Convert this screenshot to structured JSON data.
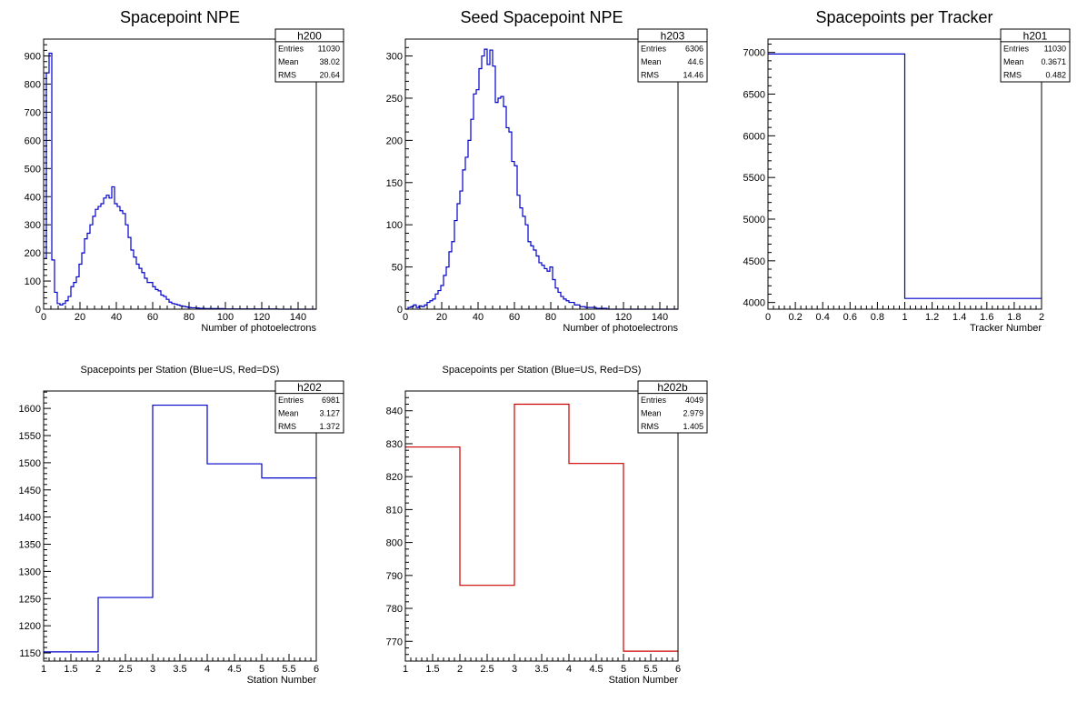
{
  "colors": {
    "blue": "#0000cc",
    "red": "#cc0000",
    "frame": "#000000"
  },
  "chart_data": [
    {
      "id": "h200",
      "type": "histogram",
      "title": "Spacepoint NPE",
      "title_size": "big",
      "xlabel": "Number of photoelectrons",
      "xlim": [
        0,
        150
      ],
      "ylim": [
        0,
        960
      ],
      "xticks": [
        0,
        20,
        40,
        60,
        80,
        100,
        120,
        140
      ],
      "xtick_labels": [
        "0",
        "20",
        "40",
        "60",
        "80",
        "100",
        "120",
        "140"
      ],
      "yticks": [
        0,
        100,
        200,
        300,
        400,
        500,
        600,
        700,
        800,
        900
      ],
      "ytick_labels": [
        "0",
        "100",
        "200",
        "300",
        "400",
        "500",
        "600",
        "700",
        "800",
        "900"
      ],
      "color": "blue",
      "bin_edges": [
        0,
        1.5,
        3,
        4.5,
        6,
        7.5,
        9,
        10.5,
        12,
        13.5,
        15,
        16.5,
        18,
        19.5,
        21,
        22.5,
        24,
        25.5,
        27,
        28.5,
        30,
        31.5,
        33,
        34.5,
        36,
        37.5,
        39,
        40.5,
        42,
        43.5,
        45,
        46.5,
        48,
        49.5,
        51,
        52.5,
        54,
        55.5,
        57,
        58.5,
        60,
        61.5,
        63,
        64.5,
        66,
        67.5,
        69,
        70.5,
        72,
        73.5,
        75,
        76.5,
        78,
        79.5,
        81,
        82.5,
        84,
        85.5,
        87,
        88.5,
        90,
        93,
        96,
        99,
        102,
        105,
        108,
        111,
        114,
        117,
        120,
        123,
        126,
        129,
        132,
        135,
        138,
        141,
        144,
        147,
        150
      ],
      "bin_values": [
        180,
        840,
        910,
        175,
        60,
        20,
        15,
        20,
        30,
        45,
        80,
        95,
        115,
        160,
        200,
        250,
        270,
        300,
        330,
        355,
        365,
        375,
        395,
        405,
        395,
        435,
        375,
        365,
        350,
        340,
        300,
        255,
        210,
        185,
        160,
        145,
        130,
        110,
        95,
        95,
        80,
        70,
        65,
        50,
        45,
        35,
        25,
        20,
        18,
        15,
        12,
        10,
        8,
        6,
        5,
        5,
        4,
        3,
        3,
        2,
        2,
        2,
        2,
        1,
        1,
        1,
        1,
        1,
        1,
        1,
        1,
        1,
        1,
        0,
        0,
        0,
        0,
        0,
        0,
        0
      ],
      "stats": {
        "name": "h200",
        "labels": [
          "Entries",
          "Mean",
          "RMS"
        ],
        "values": [
          "11030",
          "38.02",
          "20.64"
        ]
      }
    },
    {
      "id": "h203",
      "type": "histogram",
      "title": "Seed Spacepoint NPE",
      "title_size": "big",
      "xlabel": "Number of photoelectrons",
      "xlim": [
        0,
        150
      ],
      "ylim": [
        0,
        320
      ],
      "xticks": [
        0,
        20,
        40,
        60,
        80,
        100,
        120,
        140
      ],
      "xtick_labels": [
        "0",
        "20",
        "40",
        "60",
        "80",
        "100",
        "120",
        "140"
      ],
      "yticks": [
        0,
        50,
        100,
        150,
        200,
        250,
        300
      ],
      "ytick_labels": [
        "0",
        "50",
        "100",
        "150",
        "200",
        "250",
        "300"
      ],
      "color": "blue",
      "bin_edges": [
        0,
        1.5,
        3,
        4.5,
        6,
        7.5,
        9,
        10.5,
        12,
        13.5,
        15,
        16.5,
        18,
        19.5,
        21,
        22.5,
        24,
        25.5,
        27,
        28.5,
        30,
        31.5,
        33,
        34.5,
        36,
        37.5,
        39,
        40.5,
        42,
        43.5,
        45,
        46.5,
        48,
        49.5,
        51,
        52.5,
        54,
        55.5,
        57,
        58.5,
        60,
        61.5,
        63,
        64.5,
        66,
        67.5,
        69,
        70.5,
        72,
        73.5,
        75,
        76.5,
        78,
        79.5,
        81,
        82.5,
        84,
        85.5,
        87,
        88.5,
        90,
        93,
        96,
        99,
        102,
        105,
        108,
        111,
        114,
        117,
        120,
        123,
        126,
        129,
        132,
        135,
        138,
        141,
        144,
        147,
        150
      ],
      "bin_values": [
        0,
        2,
        3,
        5,
        2,
        4,
        3,
        5,
        8,
        10,
        12,
        18,
        22,
        28,
        40,
        50,
        68,
        80,
        105,
        125,
        140,
        165,
        180,
        200,
        225,
        255,
        260,
        285,
        300,
        308,
        290,
        307,
        288,
        245,
        250,
        252,
        240,
        215,
        210,
        175,
        170,
        135,
        120,
        110,
        100,
        80,
        75,
        70,
        63,
        55,
        52,
        48,
        45,
        50,
        35,
        25,
        20,
        15,
        12,
        10,
        8,
        5,
        3,
        2,
        2,
        1,
        1,
        0,
        0,
        0,
        0,
        0,
        0,
        0,
        0,
        0,
        0,
        0,
        0,
        0
      ],
      "stats": {
        "name": "h203",
        "labels": [
          "Entries",
          "Mean",
          "RMS"
        ],
        "values": [
          "6306",
          "44.6",
          "14.46"
        ]
      }
    },
    {
      "id": "h201",
      "type": "histogram",
      "title": "Spacepoints per Tracker",
      "title_size": "big",
      "xlabel": "Tracker Number",
      "xlim": [
        0,
        2
      ],
      "ylim": [
        3920,
        7160
      ],
      "xticks": [
        0,
        0.2,
        0.4,
        0.6,
        0.8,
        1,
        1.2,
        1.4,
        1.6,
        1.8,
        2
      ],
      "xtick_labels": [
        "0",
        "0.2",
        "0.4",
        "0.6",
        "0.8",
        "1",
        "1.2",
        "1.4",
        "1.6",
        "1.8",
        "2"
      ],
      "yticks": [
        4000,
        4500,
        5000,
        5500,
        6000,
        6500,
        7000
      ],
      "ytick_labels": [
        "4000",
        "4500",
        "5000",
        "5500",
        "6000",
        "6500",
        "7000"
      ],
      "color": "blue",
      "bin_edges": [
        0,
        1,
        2
      ],
      "bin_values": [
        6981,
        4049
      ],
      "stats": {
        "name": "h201",
        "labels": [
          "Entries",
          "Mean",
          "RMS"
        ],
        "values": [
          "11030",
          "0.3671",
          "0.482"
        ]
      }
    },
    {
      "id": "h202",
      "type": "histogram",
      "title": "Spacepoints per Station (Blue=US, Red=DS)",
      "title_size": "small",
      "xlabel": "Station Number",
      "xlim": [
        1,
        6
      ],
      "ylim": [
        1135,
        1632
      ],
      "xticks": [
        1,
        1.5,
        2,
        2.5,
        3,
        3.5,
        4,
        4.5,
        5,
        5.5,
        6
      ],
      "xtick_labels": [
        "1",
        "1.5",
        "2",
        "2.5",
        "3",
        "3.5",
        "4",
        "4.5",
        "5",
        "5.5",
        "6"
      ],
      "yticks": [
        1150,
        1200,
        1250,
        1300,
        1350,
        1400,
        1450,
        1500,
        1550,
        1600
      ],
      "ytick_labels": [
        "1150",
        "1200",
        "1250",
        "1300",
        "1350",
        "1400",
        "1450",
        "1500",
        "1550",
        "1600"
      ],
      "color": "blue",
      "bin_edges": [
        1,
        2,
        3,
        4,
        5,
        6
      ],
      "bin_values": [
        1152,
        1252,
        1606,
        1498,
        1472
      ],
      "stats": {
        "name": "h202",
        "labels": [
          "Entries",
          "Mean",
          "RMS"
        ],
        "values": [
          "6981",
          "3.127",
          "1.372"
        ]
      }
    },
    {
      "id": "h202b",
      "type": "histogram",
      "title": "Spacepoints per Station (Blue=US, Red=DS)",
      "title_size": "small",
      "xlabel": "Station Number",
      "xlim": [
        1,
        6
      ],
      "ylim": [
        764,
        846
      ],
      "xticks": [
        1,
        1.5,
        2,
        2.5,
        3,
        3.5,
        4,
        4.5,
        5,
        5.5,
        6
      ],
      "xtick_labels": [
        "1",
        "1.5",
        "2",
        "2.5",
        "3",
        "3.5",
        "4",
        "4.5",
        "5",
        "5.5",
        "6"
      ],
      "yticks": [
        770,
        780,
        790,
        800,
        810,
        820,
        830,
        840
      ],
      "ytick_labels": [
        "770",
        "780",
        "790",
        "800",
        "810",
        "820",
        "830",
        "840"
      ],
      "color": "red",
      "bin_edges": [
        1,
        2,
        3,
        4,
        5,
        6
      ],
      "bin_values": [
        829,
        787,
        842,
        824,
        767
      ],
      "stats": {
        "name": "h202b",
        "labels": [
          "Entries",
          "Mean",
          "RMS"
        ],
        "values": [
          "4049",
          "2.979",
          "1.405"
        ]
      }
    }
  ]
}
